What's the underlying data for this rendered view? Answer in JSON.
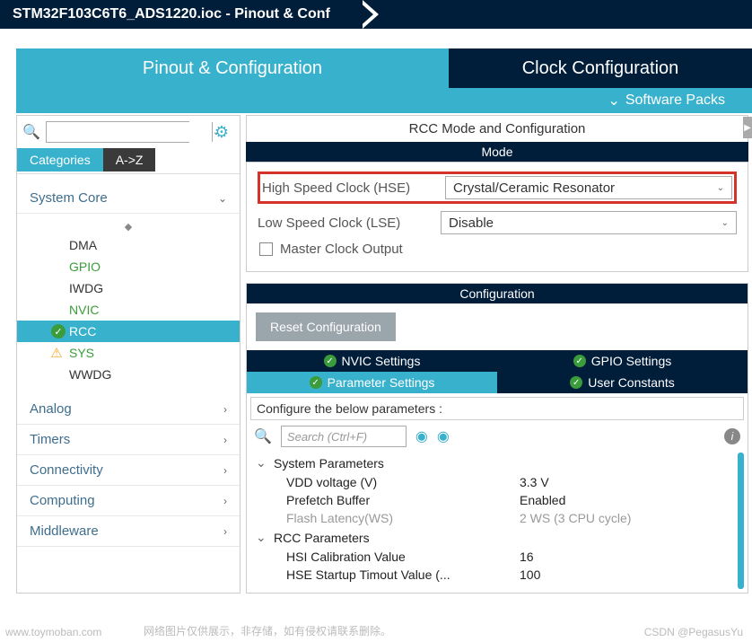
{
  "breadcrumb": "STM32F103C6T6_ADS1220.ioc - Pinout & Conf",
  "main_tabs": {
    "active": "Pinout & Configuration",
    "inactive": "Clock Configuration"
  },
  "software_packs": "Software Packs",
  "left": {
    "cat_tabs": {
      "active": "Categories",
      "inactive": "A->Z"
    },
    "sections": {
      "system_core": {
        "label": "System Core",
        "items": [
          {
            "label": "DMA",
            "style": "plain"
          },
          {
            "label": "GPIO",
            "style": "green"
          },
          {
            "label": "IWDG",
            "style": "plain"
          },
          {
            "label": "NVIC",
            "style": "green"
          },
          {
            "label": "RCC",
            "style": "selected",
            "icon": "check"
          },
          {
            "label": "SYS",
            "style": "green",
            "icon": "warn"
          },
          {
            "label": "WWDG",
            "style": "plain"
          }
        ]
      },
      "others": [
        "Analog",
        "Timers",
        "Connectivity",
        "Computing",
        "Middleware"
      ]
    }
  },
  "right": {
    "panel_title": "RCC Mode and Configuration",
    "mode_header": "Mode",
    "hse": {
      "label": "High Speed Clock (HSE)",
      "value": "Crystal/Ceramic Resonator"
    },
    "lse": {
      "label": "Low Speed Clock (LSE)",
      "value": "Disable"
    },
    "master_clock": "Master Clock Output",
    "config_header": "Configuration",
    "reset_btn": "Reset Configuration",
    "sub_tabs": {
      "nvic": "NVIC Settings",
      "gpio": "GPIO Settings",
      "param": "Parameter Settings",
      "user": "User Constants"
    },
    "configure_label": "Configure the below parameters :",
    "search_placeholder": "Search (Ctrl+F)",
    "groups": {
      "sys": {
        "label": "System Parameters",
        "rows": [
          {
            "k": "VDD voltage (V)",
            "v": "3.3 V"
          },
          {
            "k": "Prefetch Buffer",
            "v": "Enabled"
          },
          {
            "k": "Flash Latency(WS)",
            "v": "2 WS (3 CPU cycle)",
            "dim": true
          }
        ]
      },
      "rcc": {
        "label": "RCC Parameters",
        "rows": [
          {
            "k": "HSI Calibration Value",
            "v": "16"
          },
          {
            "k": "HSE Startup Timout Value (...",
            "v": "100"
          }
        ]
      }
    }
  },
  "watermarks": {
    "left": "www.toymoban.com",
    "mid": "网络图片仅供展示，非存储，如有侵权请联系删除。",
    "right": "CSDN @PegasusYu"
  }
}
